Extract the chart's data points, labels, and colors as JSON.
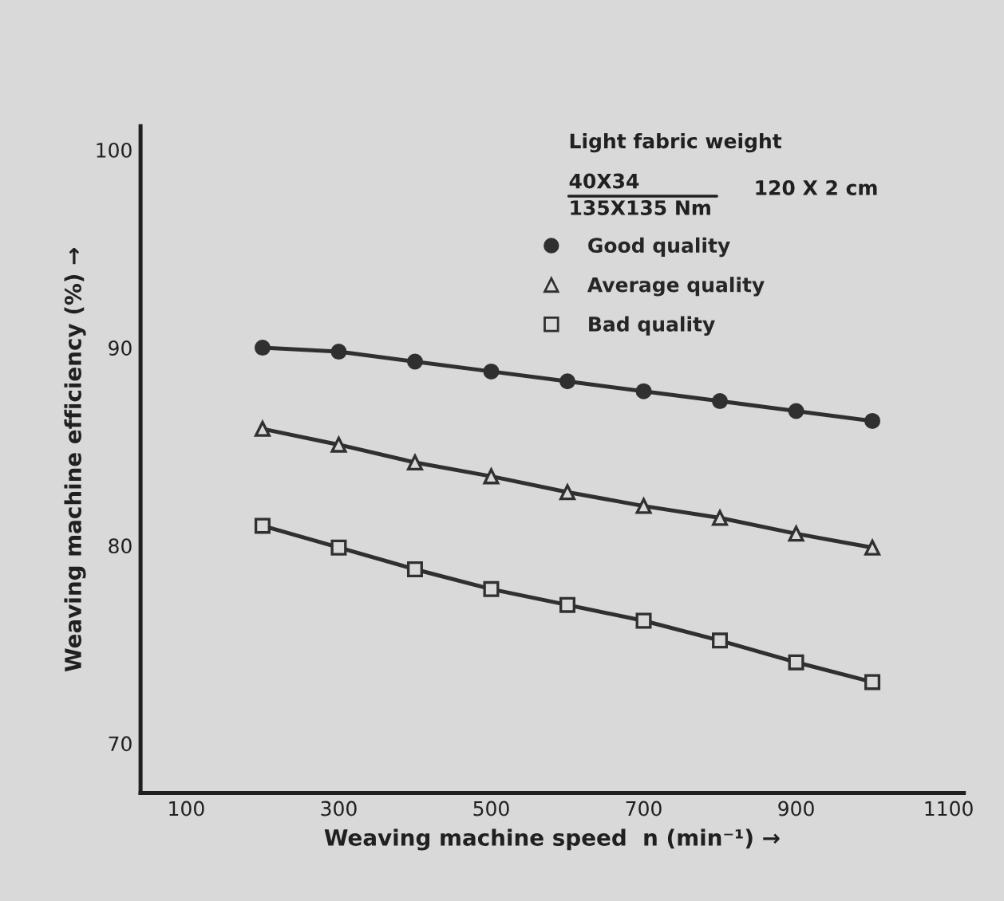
{
  "chart_data": {
    "type": "line",
    "xlabel": "Weaving machine speed  n (min⁻¹) →",
    "ylabel": "Weaving machine efficiency (%) →",
    "annotations": [
      "Light fabric weight",
      "40X34",
      "135X135 Nm",
      "120 X 2 cm"
    ],
    "x": [
      200,
      300,
      400,
      500,
      600,
      700,
      800,
      900,
      1000
    ],
    "series": [
      {
        "name": "Good quality",
        "color": "#303030",
        "marker": "circle",
        "values": [
          90.0,
          89.8,
          89.3,
          88.8,
          88.3,
          87.8,
          87.3,
          86.8,
          86.3
        ]
      },
      {
        "name": "Average quality",
        "color": "#303030",
        "marker": "triangle",
        "values": [
          85.9,
          85.1,
          84.2,
          83.5,
          82.7,
          82.0,
          81.4,
          80.6,
          79.9
        ]
      },
      {
        "name": "Bad quality",
        "color": "#303030",
        "marker": "square",
        "values": [
          81.0,
          79.9,
          78.8,
          77.8,
          77.0,
          76.2,
          75.2,
          74.1,
          73.1
        ]
      }
    ],
    "xlim": [
      40,
      1120
    ],
    "ylim": [
      67.5,
      101.2
    ],
    "xticks": [
      100,
      300,
      500,
      700,
      900,
      1100
    ],
    "yticks": [
      70,
      80,
      90,
      100
    ],
    "grid": false,
    "legend": "top right",
    "line_style": "solid"
  }
}
